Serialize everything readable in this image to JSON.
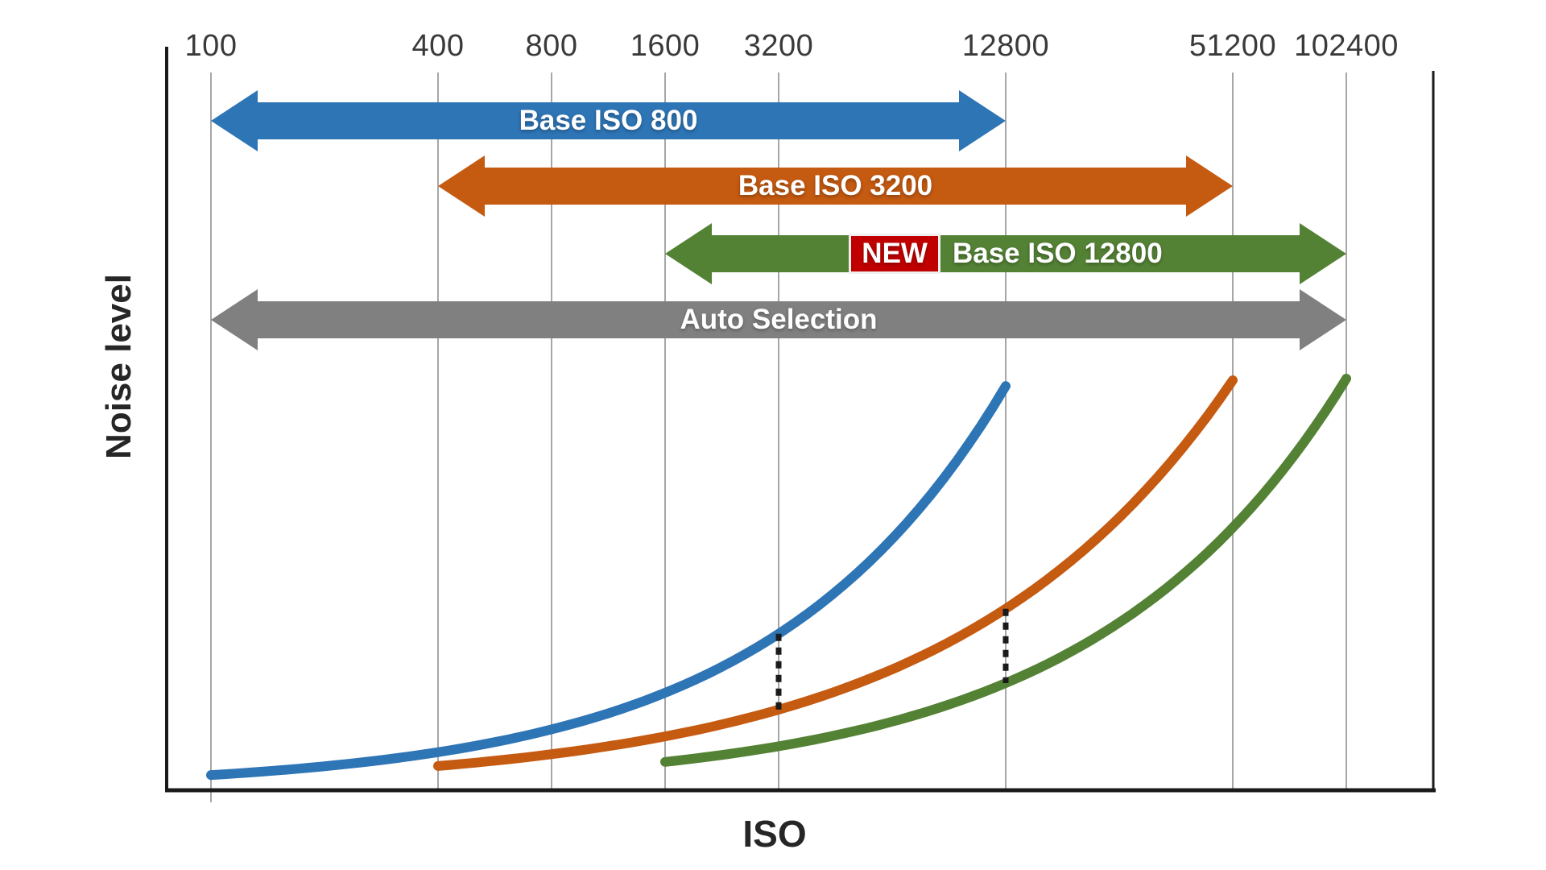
{
  "page": {
    "background": "#ffffff"
  },
  "chart_data": {
    "type": "line",
    "title": "",
    "xlabel": "ISO",
    "ylabel": "Noise level",
    "x_axis": {
      "label": "ISO",
      "scale": "log2",
      "ticks": [
        100,
        400,
        800,
        1600,
        3200,
        12800,
        51200,
        102400
      ]
    },
    "y_axis": {
      "label": "Noise level",
      "ticks": []
    },
    "series": [
      {
        "id": "base-iso-800",
        "label": "Base ISO 800",
        "color": "#2E75B6",
        "iso_start": 100,
        "iso_end": 12800,
        "noise_start": 3.5,
        "noise_end": 98.2
      },
      {
        "id": "base-iso-3200",
        "label": "Base ISO 3200",
        "color": "#C55A11",
        "iso_start": 400,
        "iso_end": 51200,
        "noise_start": 5.7,
        "noise_end": 99.6
      },
      {
        "id": "base-iso-12800",
        "label": "Base ISO 12800",
        "color": "#548235",
        "iso_start": 1600,
        "iso_end": 102400,
        "noise_start": 6.7,
        "noise_end": 100
      }
    ],
    "connectors": [
      {
        "iso": 3200,
        "from_series": "base-iso-800",
        "to_series": "base-iso-3200"
      },
      {
        "iso": 12800,
        "from_series": "base-iso-3200",
        "to_series": "base-iso-12800"
      }
    ],
    "bands": [
      {
        "id": "base-iso-800",
        "label": "Base ISO 800",
        "color": "#2E75B6",
        "iso_from": 100,
        "iso_to": 12800,
        "badge": null
      },
      {
        "id": "base-iso-3200",
        "label": "Base ISO 3200",
        "color": "#C55A11",
        "iso_from": 400,
        "iso_to": 51200,
        "badge": null
      },
      {
        "id": "base-iso-12800",
        "label": "Base ISO 12800",
        "color": "#548235",
        "iso_from": 1600,
        "iso_to": 102400,
        "badge": "NEW",
        "badge_color": "#C00000"
      },
      {
        "id": "auto-selection",
        "label": "Auto Selection",
        "color": "#808080",
        "iso_from": 100,
        "iso_to": 102400,
        "badge": null
      }
    ],
    "colors": {
      "gridline": "#A6A6A6",
      "axis": "#1a1a1a",
      "connector": "#1a1a1a",
      "tick_text": "#3a3a3a",
      "axis_text": "#262626",
      "band_text": "#ffffff",
      "badge_border": "#f0f0f0"
    }
  }
}
